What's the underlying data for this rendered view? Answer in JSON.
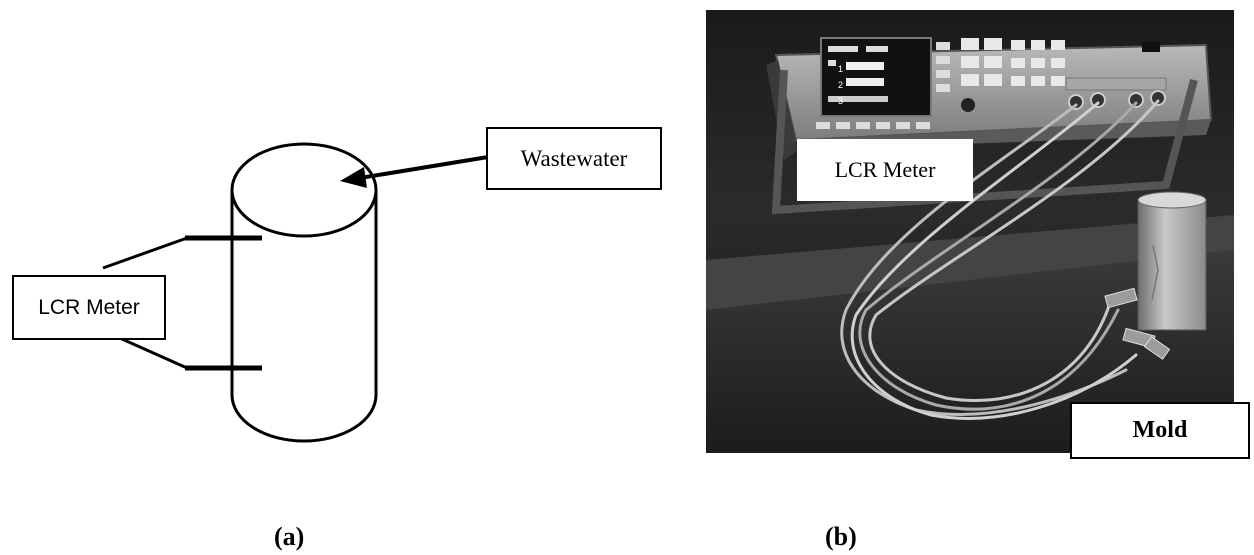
{
  "diagram": {
    "wastewater_label": "Wastewater",
    "lcr_label": "LCR Meter",
    "caption": "(a)"
  },
  "photo": {
    "lcr_label": "LCR Meter",
    "mold_label": "Mold",
    "caption": "(b)",
    "display_readouts": [
      "1",
      "2",
      "3"
    ]
  }
}
